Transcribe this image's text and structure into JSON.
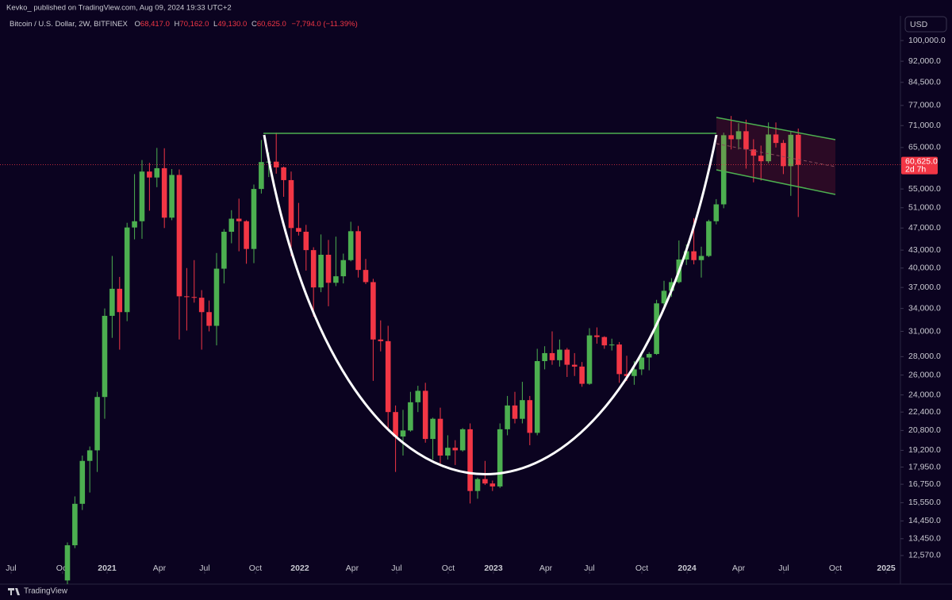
{
  "header": {
    "publisher": "Kevko_  published on TradingView.com, Aug 09, 2024 19:33 UTC+2",
    "symbol": "Bitcoin / U.S. Dollar, 2W, BITFINEX",
    "o_letter": "O",
    "o_value": "68,417.0",
    "h_letter": "H",
    "h_value": "70,162.0",
    "l_letter": "L",
    "l_value": "49,130.0",
    "c_letter": "C",
    "c_value": "60,625.0",
    "change": "−7,794.0 (−11.39%)"
  },
  "footer": {
    "brand": "TradingView"
  },
  "chart_data": {
    "type": "candlestick",
    "currency": "USD",
    "log_scale": true,
    "up_color": "#4caf50",
    "down_color": "#f23645",
    "last_price": {
      "label": "60,625.0",
      "countdown": "2d 7h"
    },
    "open": [
      11370,
      13100,
      15480,
      18400,
      19200,
      23800,
      33000,
      36800,
      33500,
      47100,
      48300,
      59000,
      57600,
      59800,
      49000,
      58200,
      35700,
      35600,
      35500,
      33500,
      31700,
      39900,
      46300,
      48800,
      48300,
      43200,
      55000,
      61300,
      61400,
      60000,
      57000,
      47000,
      46300,
      43000,
      37000,
      42200,
      37700,
      38700,
      41300,
      46400,
      39700,
      37800,
      30000,
      29800,
      22400,
      20300,
      20800,
      23300,
      24400,
      20100,
      21800,
      18800,
      19400,
      19200,
      20900,
      16300,
      17100,
      16800,
      16600,
      20900,
      23000,
      21800,
      23500,
      20600,
      27500,
      28400,
      27600,
      28800,
      27100,
      26900,
      25100,
      30500,
      30300,
      29300,
      29400,
      26100,
      25900,
      26600,
      27900,
      28300,
      34700,
      36500,
      37800,
      41400,
      42800,
      41300,
      42000,
      48300,
      51700,
      68300,
      67200,
      69400,
      64500,
      62900,
      61500,
      68500,
      66200,
      60300,
      68417
    ],
    "high": [
      13250,
      15950,
      18800,
      19500,
      24300,
      34000,
      42000,
      38600,
      48000,
      58400,
      61800,
      61100,
      64900,
      64800,
      59600,
      59500,
      40000,
      41300,
      36600,
      35100,
      42500,
      46800,
      50500,
      52900,
      48500,
      56000,
      67000,
      63700,
      69000,
      60200,
      59000,
      52000,
      47600,
      43500,
      45800,
      44800,
      45400,
      42400,
      48200,
      47400,
      41500,
      38300,
      32400,
      31700,
      23000,
      22600,
      24300,
      24900,
      25200,
      21900,
      22800,
      20400,
      20000,
      21000,
      21400,
      17200,
      18400,
      17000,
      21400,
      23900,
      24300,
      25300,
      23900,
      28900,
      29200,
      31000,
      30000,
      29000,
      28400,
      27400,
      31400,
      31500,
      30400,
      30100,
      29700,
      28100,
      27500,
      28600,
      28500,
      35200,
      38000,
      38400,
      44700,
      44000,
      48900,
      43600,
      48600,
      52800,
      69000,
      73800,
      71700,
      72700,
      67200,
      65500,
      71900,
      71900,
      67000,
      69400,
      70162
    ],
    "low": [
      11200,
      12950,
      15100,
      16200,
      17600,
      21800,
      30200,
      28800,
      32300,
      44900,
      45000,
      50400,
      55400,
      47000,
      48500,
      30000,
      31100,
      34800,
      28800,
      31000,
      29300,
      37600,
      44200,
      42800,
      40700,
      40800,
      54000,
      57700,
      58500,
      53300,
      42000,
      45600,
      39600,
      32900,
      36300,
      34300,
      37200,
      37600,
      41100,
      38500,
      37500,
      25400,
      28600,
      20800,
      17600,
      18800,
      20700,
      22400,
      19800,
      18500,
      18200,
      18500,
      18100,
      19100,
      15500,
      15800,
      16700,
      16300,
      16500,
      20400,
      21400,
      21400,
      19600,
      20400,
      26600,
      27100,
      26900,
      25800,
      25900,
      24800,
      25000,
      29500,
      28900,
      28700,
      25200,
      25400,
      25000,
      26000,
      26500,
      28200,
      34100,
      35600,
      37600,
      40500,
      40600,
      38500,
      41800,
      47700,
      50900,
      64500,
      64500,
      59700,
      56500,
      56900,
      61000,
      65000,
      58400,
      53500,
      49130
    ],
    "close": [
      13100,
      15480,
      18400,
      19200,
      23800,
      33000,
      36800,
      33500,
      47100,
      48300,
      59000,
      57600,
      59800,
      49000,
      58200,
      35700,
      35600,
      35500,
      33500,
      31700,
      39900,
      46300,
      48800,
      48300,
      43200,
      55000,
      61300,
      61400,
      60000,
      57000,
      47000,
      46300,
      43000,
      37000,
      42200,
      37700,
      38700,
      41300,
      46400,
      39700,
      37800,
      30000,
      29800,
      22400,
      20300,
      20800,
      23300,
      24400,
      20100,
      21800,
      18800,
      19400,
      19200,
      20900,
      16300,
      17100,
      16800,
      16600,
      20900,
      23000,
      21800,
      23500,
      20600,
      27500,
      28400,
      27600,
      28800,
      27100,
      26900,
      25100,
      30500,
      30300,
      29300,
      29400,
      26100,
      25900,
      26600,
      27900,
      28300,
      34700,
      36500,
      37800,
      41400,
      42800,
      41300,
      42000,
      48300,
      51700,
      68300,
      67200,
      69400,
      64500,
      62900,
      61500,
      68500,
      66200,
      60300,
      68417,
      60625
    ],
    "ylim": [
      11790,
      103600
    ],
    "yticks": [
      {
        "value": 100000,
        "label": "100,000.0"
      },
      {
        "value": 92000,
        "label": "92,000.0"
      },
      {
        "value": 84500,
        "label": "84,500.0"
      },
      {
        "value": 77000,
        "label": "77,000.0"
      },
      {
        "value": 71000,
        "label": "71,000.0"
      },
      {
        "value": 65000,
        "label": "65,000.0"
      },
      {
        "value": 55000,
        "label": "55,000.0"
      },
      {
        "value": 51000,
        "label": "51,000.0"
      },
      {
        "value": 47000,
        "label": "47,000.0"
      },
      {
        "value": 43000,
        "label": "43,000.0"
      },
      {
        "value": 40000,
        "label": "40,000.0"
      },
      {
        "value": 37000,
        "label": "37,000.0"
      },
      {
        "value": 34000,
        "label": "34,000.0"
      },
      {
        "value": 31000,
        "label": "31,000.0"
      },
      {
        "value": 28000,
        "label": "28,000.0"
      },
      {
        "value": 26000,
        "label": "26,000.0"
      },
      {
        "value": 24000,
        "label": "24,000.0"
      },
      {
        "value": 22400,
        "label": "22,400.0"
      },
      {
        "value": 20800,
        "label": "20,800.0"
      },
      {
        "value": 19200,
        "label": "19,200.0"
      },
      {
        "value": 17950,
        "label": "17,950.0"
      },
      {
        "value": 16750,
        "label": "16,750.0"
      },
      {
        "value": 15550,
        "label": "15,550.0"
      },
      {
        "value": 14450,
        "label": "14,450.0"
      },
      {
        "value": 13450,
        "label": "13,450.0"
      },
      {
        "value": 12570,
        "label": "12,570.0"
      }
    ],
    "xlim": [
      -9.04,
      111.7
    ],
    "xticks": [
      {
        "value": -7.55,
        "label": "Jul"
      },
      {
        "value": -0.64,
        "label": "Oct"
      },
      {
        "value": 5.32,
        "label": "2021"
      },
      {
        "value": 12.34,
        "label": "Apr"
      },
      {
        "value": 18.4,
        "label": "Jul"
      },
      {
        "value": 25.21,
        "label": "Oct"
      },
      {
        "value": 31.17,
        "label": "2022"
      },
      {
        "value": 38.19,
        "label": "Apr"
      },
      {
        "value": 44.15,
        "label": "Jul"
      },
      {
        "value": 51.06,
        "label": "Oct"
      },
      {
        "value": 57.13,
        "label": "2023"
      },
      {
        "value": 64.15,
        "label": "Apr"
      },
      {
        "value": 70,
        "label": "Jul"
      },
      {
        "value": 77.02,
        "label": "Oct"
      },
      {
        "value": 83.09,
        "label": "2024"
      },
      {
        "value": 90,
        "label": "Apr"
      },
      {
        "value": 96.06,
        "label": "Jul"
      },
      {
        "value": 102.98,
        "label": "Oct"
      },
      {
        "value": 109.79,
        "label": "2025"
      }
    ]
  }
}
